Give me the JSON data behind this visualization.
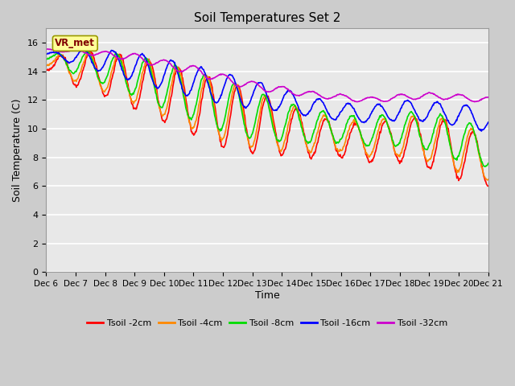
{
  "title": "Soil Temperatures Set 2",
  "xlabel": "Time",
  "ylabel": "Soil Temperature (C)",
  "ylim": [
    0,
    17
  ],
  "yticks": [
    0,
    2,
    4,
    6,
    8,
    10,
    12,
    14,
    16
  ],
  "xtick_labels": [
    "Dec 6",
    "Dec 7",
    "Dec 8",
    "Dec 9",
    "Dec 10",
    "Dec 11",
    "Dec 12",
    "Dec 13",
    "Dec 14",
    "Dec 15",
    "Dec 16",
    "Dec 17",
    "Dec 18",
    "Dec 19",
    "Dec 20",
    "Dec 21"
  ],
  "line_colors": [
    "#ff0000",
    "#ff8800",
    "#00dd00",
    "#0000ff",
    "#cc00cc"
  ],
  "line_labels": [
    "Tsoil -2cm",
    "Tsoil -4cm",
    "Tsoil -8cm",
    "Tsoil -16cm",
    "Tsoil -32cm"
  ],
  "annotation_text": "VR_met",
  "annotation_color": "#800000",
  "annotation_bg": "#ffff99",
  "annotation_edge": "#999900",
  "fig_bg": "#cccccc",
  "plot_bg": "#e8e8e8",
  "grid_color": "#ffffff",
  "title_fontsize": 11,
  "label_fontsize": 9,
  "tick_fontsize": 8,
  "n_days": 15,
  "pts_per_day": 48
}
